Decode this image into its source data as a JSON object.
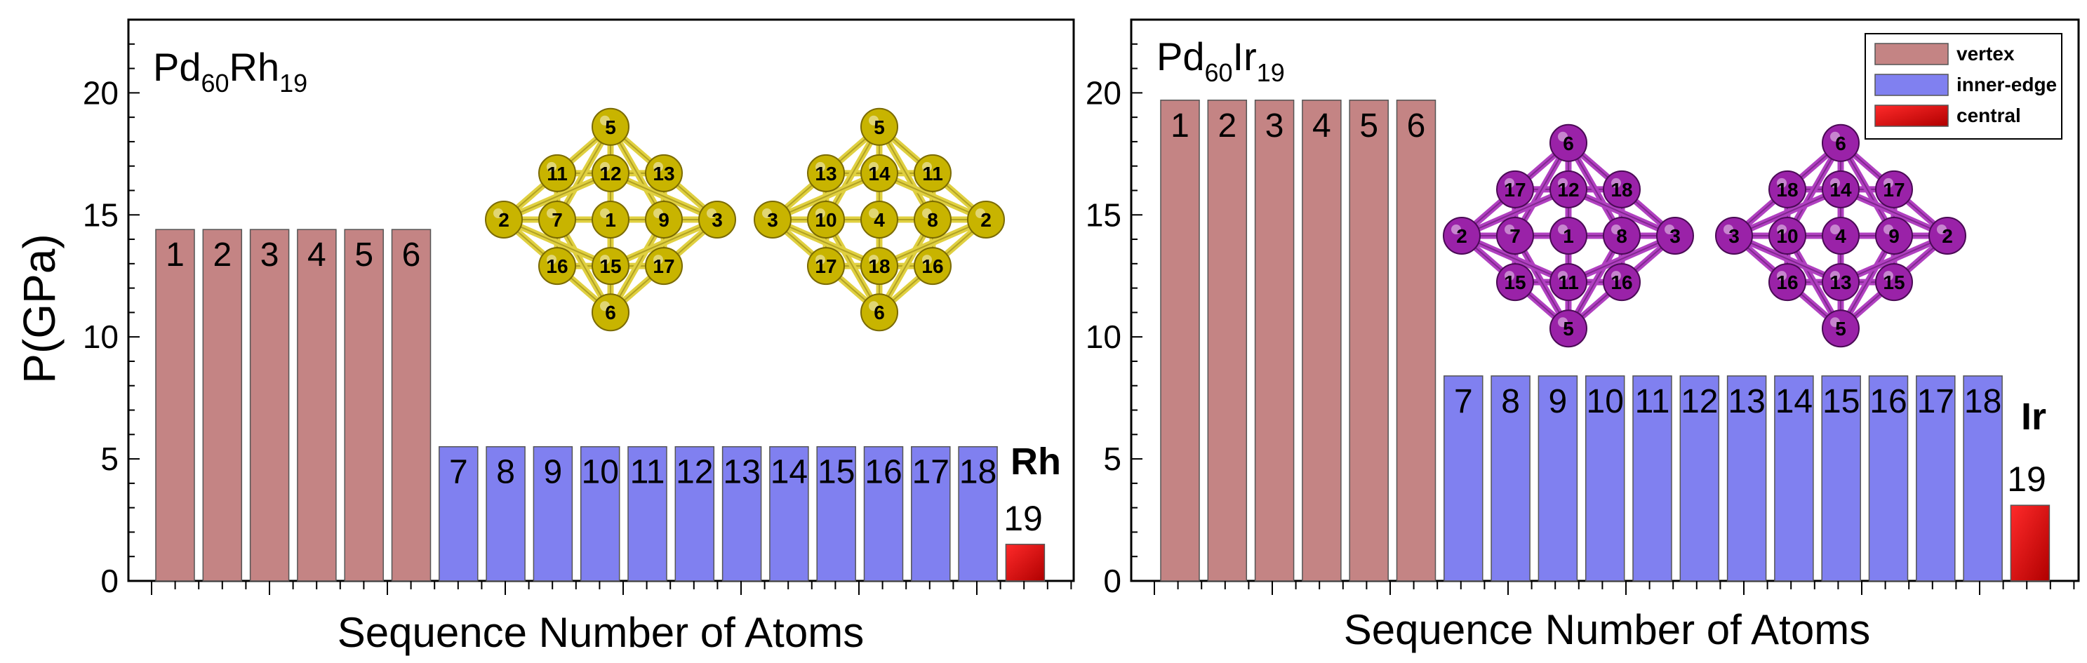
{
  "colors": {
    "vertex": "#c48484",
    "inner_edge": "#8080f0",
    "central": "#ee0000",
    "rh_atom": "#c8b400",
    "rh_bond": "#e0d040",
    "ir_atom": "#9a22a8",
    "ir_bond": "#b040c0"
  },
  "legend": {
    "items": [
      {
        "label": "vertex",
        "color_key": "vertex"
      },
      {
        "label": "inner-edge",
        "color_key": "inner_edge"
      },
      {
        "label": "central",
        "color_key": "central"
      }
    ]
  },
  "chart_data": [
    {
      "type": "bar",
      "title_base": "Pd",
      "title_sub1": "60",
      "title_mid": "Rh",
      "title_sub2": "19",
      "xlabel": "Sequence Number of Atoms",
      "ylabel": "P(GPa)",
      "ylim": [
        0,
        23
      ],
      "yticks": [
        0,
        5,
        10,
        15,
        20
      ],
      "element_label": "Rh",
      "central_label": "19",
      "bars": [
        {
          "label": "1",
          "value": 14.4,
          "group": "vertex"
        },
        {
          "label": "2",
          "value": 14.4,
          "group": "vertex"
        },
        {
          "label": "3",
          "value": 14.4,
          "group": "vertex"
        },
        {
          "label": "4",
          "value": 14.4,
          "group": "vertex"
        },
        {
          "label": "5",
          "value": 14.4,
          "group": "vertex"
        },
        {
          "label": "6",
          "value": 14.4,
          "group": "vertex"
        },
        {
          "label": "7",
          "value": 5.5,
          "group": "inner_edge"
        },
        {
          "label": "8",
          "value": 5.5,
          "group": "inner_edge"
        },
        {
          "label": "9",
          "value": 5.5,
          "group": "inner_edge"
        },
        {
          "label": "10",
          "value": 5.5,
          "group": "inner_edge"
        },
        {
          "label": "11",
          "value": 5.5,
          "group": "inner_edge"
        },
        {
          "label": "12",
          "value": 5.5,
          "group": "inner_edge"
        },
        {
          "label": "13",
          "value": 5.5,
          "group": "inner_edge"
        },
        {
          "label": "14",
          "value": 5.5,
          "group": "inner_edge"
        },
        {
          "label": "15",
          "value": 5.5,
          "group": "inner_edge"
        },
        {
          "label": "16",
          "value": 5.5,
          "group": "inner_edge"
        },
        {
          "label": "17",
          "value": 5.5,
          "group": "inner_edge"
        },
        {
          "label": "18",
          "value": 5.5,
          "group": "inner_edge"
        },
        {
          "label": "",
          "value": 1.5,
          "group": "central"
        }
      ],
      "clusters": [
        {
          "atoms": [
            "5",
            "11",
            "12",
            "13",
            "2",
            "7",
            "1",
            "9",
            "3",
            "16",
            "15",
            "17",
            "6"
          ]
        },
        {
          "atoms": [
            "5",
            "13",
            "14",
            "11",
            "3",
            "10",
            "4",
            "8",
            "2",
            "17",
            "18",
            "16",
            "6"
          ]
        }
      ]
    },
    {
      "type": "bar",
      "title_base": "Pd",
      "title_sub1": "60",
      "title_mid": "Ir",
      "title_sub2": "19",
      "xlabel": "Sequence Number of Atoms",
      "ylabel": "",
      "ylim": [
        0,
        23
      ],
      "yticks": [
        0,
        5,
        10,
        15,
        20
      ],
      "element_label": "Ir",
      "central_label": "19",
      "bars": [
        {
          "label": "1",
          "value": 19.7,
          "group": "vertex"
        },
        {
          "label": "2",
          "value": 19.7,
          "group": "vertex"
        },
        {
          "label": "3",
          "value": 19.7,
          "group": "vertex"
        },
        {
          "label": "4",
          "value": 19.7,
          "group": "vertex"
        },
        {
          "label": "5",
          "value": 19.7,
          "group": "vertex"
        },
        {
          "label": "6",
          "value": 19.7,
          "group": "vertex"
        },
        {
          "label": "7",
          "value": 8.4,
          "group": "inner_edge"
        },
        {
          "label": "8",
          "value": 8.4,
          "group": "inner_edge"
        },
        {
          "label": "9",
          "value": 8.4,
          "group": "inner_edge"
        },
        {
          "label": "10",
          "value": 8.4,
          "group": "inner_edge"
        },
        {
          "label": "11",
          "value": 8.4,
          "group": "inner_edge"
        },
        {
          "label": "12",
          "value": 8.4,
          "group": "inner_edge"
        },
        {
          "label": "13",
          "value": 8.4,
          "group": "inner_edge"
        },
        {
          "label": "14",
          "value": 8.4,
          "group": "inner_edge"
        },
        {
          "label": "15",
          "value": 8.4,
          "group": "inner_edge"
        },
        {
          "label": "16",
          "value": 8.4,
          "group": "inner_edge"
        },
        {
          "label": "17",
          "value": 8.4,
          "group": "inner_edge"
        },
        {
          "label": "18",
          "value": 8.4,
          "group": "inner_edge"
        },
        {
          "label": "",
          "value": 3.1,
          "group": "central"
        }
      ],
      "clusters": [
        {
          "atoms": [
            "6",
            "17",
            "12",
            "18",
            "2",
            "7",
            "1",
            "8",
            "3",
            "15",
            "11",
            "16",
            "5"
          ]
        },
        {
          "atoms": [
            "6",
            "18",
            "14",
            "17",
            "3",
            "10",
            "4",
            "9",
            "2",
            "16",
            "13",
            "15",
            "5"
          ]
        }
      ]
    }
  ]
}
